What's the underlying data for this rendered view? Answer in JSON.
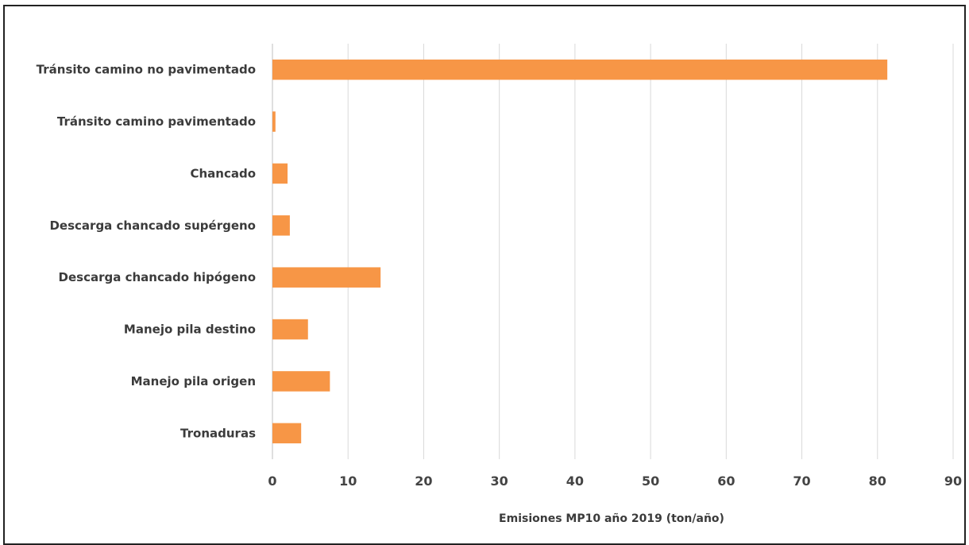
{
  "chart_data": {
    "type": "bar",
    "orientation": "horizontal",
    "title": "",
    "categories": [
      "Tránsito camino no pavimentado",
      "Tránsito camino pavimentado",
      "Chancado",
      "Descarga chancado supérgeno",
      "Descarga chancado hipógeno",
      "Manejo pila destino",
      "Manejo pila origen",
      "Tronaduras"
    ],
    "values": [
      81.3,
      0.4,
      2.0,
      2.3,
      14.3,
      4.7,
      7.6,
      3.8
    ],
    "xlabel": "Emisiones  MP10 año  2019 (ton/año)",
    "ylabel": "",
    "xlim": [
      0,
      90
    ],
    "xticks": [
      "0",
      "10",
      "20",
      "30",
      "40",
      "50",
      "60",
      "70",
      "80",
      "90"
    ],
    "grid": true,
    "legend": "none",
    "colors": {
      "bar": "#f79646",
      "grid": "#d9d9d9",
      "axis": "#bfbfbf"
    }
  }
}
